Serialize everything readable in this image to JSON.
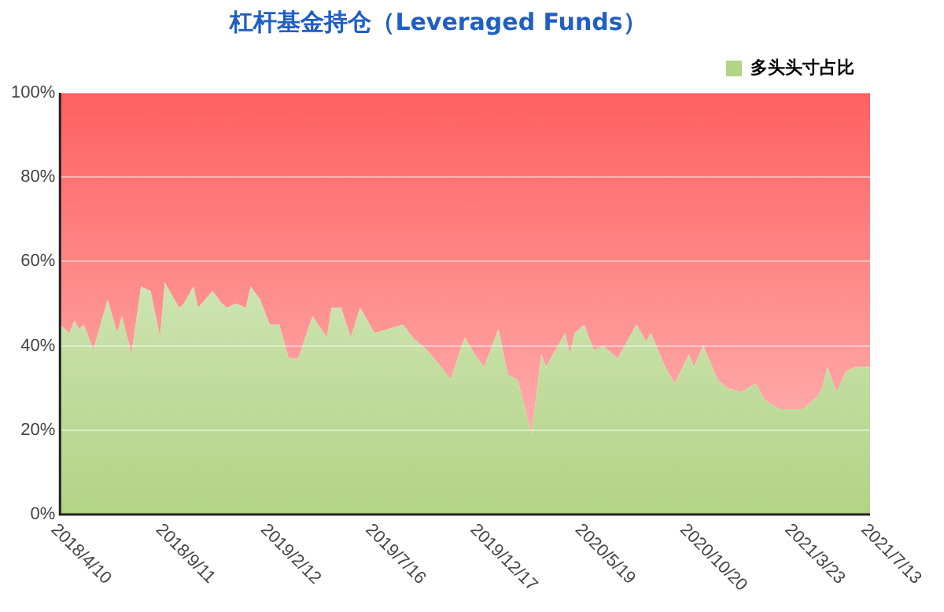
{
  "chart_data": {
    "type": "area",
    "title": "杠杆基金持仓（Leveraged Funds）",
    "stacked": true,
    "x": [
      "2018-04-10",
      "2018-04-24",
      "2018-05-01",
      "2018-05-08",
      "2018-05-15",
      "2018-05-29",
      "2018-06-19",
      "2018-07-03",
      "2018-07-10",
      "2018-07-24",
      "2018-08-07",
      "2018-08-21",
      "2018-09-04",
      "2018-09-11",
      "2018-10-02",
      "2018-10-09",
      "2018-10-23",
      "2018-10-30",
      "2018-11-20",
      "2018-12-04",
      "2018-12-11",
      "2018-12-25",
      "2019-01-08",
      "2019-01-15",
      "2019-01-29",
      "2019-02-12",
      "2019-02-26",
      "2019-03-12",
      "2019-03-26",
      "2019-04-16",
      "2019-05-07",
      "2019-05-14",
      "2019-05-28",
      "2019-06-11",
      "2019-06-25",
      "2019-07-16",
      "2019-08-06",
      "2019-08-27",
      "2019-09-10",
      "2019-10-01",
      "2019-10-22",
      "2019-11-05",
      "2019-11-19",
      "2019-11-26",
      "2019-12-10",
      "2019-12-24",
      "2020-01-14",
      "2020-01-28",
      "2020-02-11",
      "2020-03-03",
      "2020-03-17",
      "2020-03-24",
      "2020-04-21",
      "2020-04-28",
      "2020-05-05",
      "2020-05-19",
      "2020-06-02",
      "2020-06-16",
      "2020-07-07",
      "2020-08-04",
      "2020-08-18",
      "2020-08-25",
      "2020-09-15",
      "2020-09-29",
      "2020-10-20",
      "2020-10-27",
      "2020-11-10",
      "2020-12-01",
      "2020-12-15",
      "2021-01-05",
      "2021-01-26",
      "2021-02-09",
      "2021-03-02",
      "2021-04-06",
      "2021-04-27",
      "2021-05-04",
      "2021-05-11",
      "2021-05-25",
      "2021-06-08",
      "2021-06-22",
      "2021-07-13"
    ],
    "series": [
      {
        "name": "多头头寸占比",
        "color": "#b2d486",
        "values": [
          45,
          43,
          46,
          44,
          45,
          39,
          51,
          43,
          47,
          38,
          54,
          53,
          42,
          55,
          49,
          50,
          54,
          49,
          53,
          50,
          49,
          50,
          49,
          54,
          51,
          45,
          45,
          37,
          37,
          47,
          42,
          49,
          49,
          42,
          49,
          43,
          44,
          45,
          42,
          39,
          35,
          32,
          39,
          42,
          38,
          35,
          44,
          33,
          32,
          19,
          38,
          35,
          43,
          38,
          43,
          45,
          39,
          40,
          37,
          45,
          41,
          43,
          35,
          31,
          38,
          35,
          40,
          32,
          30,
          29,
          31,
          27,
          25,
          25,
          28,
          30,
          35,
          29,
          34,
          35,
          35
        ]
      },
      {
        "color": "#ff6060",
        "values": [
          55,
          57,
          54,
          56,
          55,
          61,
          49,
          57,
          53,
          62,
          46,
          47,
          58,
          45,
          51,
          50,
          46,
          51,
          47,
          50,
          51,
          50,
          51,
          46,
          49,
          55,
          55,
          63,
          63,
          53,
          58,
          51,
          51,
          58,
          51,
          57,
          56,
          55,
          58,
          61,
          65,
          68,
          61,
          58,
          62,
          65,
          56,
          67,
          68,
          81,
          62,
          65,
          57,
          62,
          57,
          55,
          61,
          60,
          63,
          55,
          59,
          57,
          65,
          69,
          62,
          65,
          60,
          68,
          70,
          71,
          69,
          73,
          75,
          75,
          72,
          70,
          65,
          71,
          66,
          65,
          65
        ]
      }
    ],
    "xlim": [
      "2018-04-10",
      "2021-07-13"
    ],
    "xticks": [
      {
        "value": "2018-04-10",
        "label": "2018/4/10"
      },
      {
        "value": "2018-09-11",
        "label": "2018/9/11"
      },
      {
        "value": "2019-02-12",
        "label": "2019/2/12"
      },
      {
        "value": "2019-07-16",
        "label": "2019/7/16"
      },
      {
        "value": "2019-12-17",
        "label": "2019/12/17"
      },
      {
        "value": "2020-05-19",
        "label": "2020/5/19"
      },
      {
        "value": "2020-10-20",
        "label": "2020/10/20"
      },
      {
        "value": "2021-03-23",
        "label": "2021/3/23"
      },
      {
        "value": "2021-07-13",
        "label": "2021/7/13"
      }
    ],
    "ylim": [
      0,
      100
    ],
    "yticks": [
      {
        "value": 0,
        "label": "0%"
      },
      {
        "value": 20,
        "label": "20%"
      },
      {
        "value": 40,
        "label": "40%"
      },
      {
        "value": 60,
        "label": "60%"
      },
      {
        "value": 80,
        "label": "80%"
      },
      {
        "value": 100,
        "label": "100%"
      }
    ],
    "grid": "y",
    "legend": "top right"
  }
}
